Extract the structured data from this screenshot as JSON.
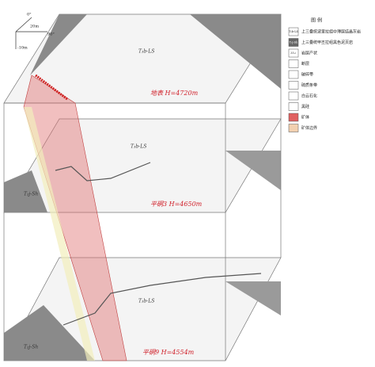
{
  "scale": {
    "dip_zero": "0°",
    "distance": "20m",
    "dip_ninety": "90°",
    "depth": "-10m"
  },
  "levels": [
    {
      "label": "地表  H=4720m",
      "rock": "T₃b-LS"
    },
    {
      "label": "平硐3  H=4650m",
      "rock": "T₃b-LS",
      "shale": "T₃j-Sh"
    },
    {
      "label": "平硐9  H=4554m",
      "rock": "T₃b-LS",
      "shale": "T₃j-Sh"
    }
  ],
  "legend": {
    "title": "图  例",
    "items": [
      {
        "code": "T₃b-LS",
        "label": "上三叠统波里拉组中薄层结晶灰岩"
      },
      {
        "code": "T₃j-Sh",
        "label": "上三叠统甲丕拉组黑色泥页岩"
      },
      {
        "code": "35∠",
        "label": "岩层产状"
      },
      {
        "label": "断层"
      },
      {
        "label": "破碎带"
      },
      {
        "label": "硫质条带"
      },
      {
        "label": "白云石化"
      },
      {
        "label": "黑硅"
      },
      {
        "label": "矿体"
      },
      {
        "label": "矿体边界"
      }
    ]
  }
}
